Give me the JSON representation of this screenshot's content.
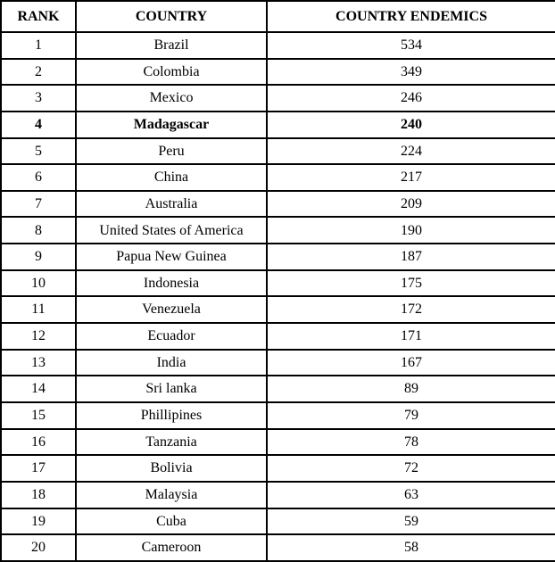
{
  "colors": {
    "border": "#000000",
    "text": "#000000",
    "background": "#ffffff"
  },
  "table": {
    "columns": {
      "rank": "RANK",
      "country": "COUNTRY",
      "endemics": "COUNTRY ENDEMICS"
    },
    "rows": [
      {
        "rank": "1",
        "country": "Brazil",
        "endemics": "534",
        "bold": false
      },
      {
        "rank": "2",
        "country": "Colombia",
        "endemics": "349",
        "bold": false
      },
      {
        "rank": "3",
        "country": "Mexico",
        "endemics": "246",
        "bold": false
      },
      {
        "rank": "4",
        "country": "Madagascar",
        "endemics": "240",
        "bold": true
      },
      {
        "rank": "5",
        "country": "Peru",
        "endemics": "224",
        "bold": false
      },
      {
        "rank": "6",
        "country": "China",
        "endemics": "217",
        "bold": false
      },
      {
        "rank": "7",
        "country": "Australia",
        "endemics": "209",
        "bold": false
      },
      {
        "rank": "8",
        "country": "United States of America",
        "endemics": "190",
        "bold": false
      },
      {
        "rank": "9",
        "country": "Papua New Guinea",
        "endemics": "187",
        "bold": false
      },
      {
        "rank": "10",
        "country": "Indonesia",
        "endemics": "175",
        "bold": false
      },
      {
        "rank": "11",
        "country": "Venezuela",
        "endemics": "172",
        "bold": false
      },
      {
        "rank": "12",
        "country": "Ecuador",
        "endemics": "171",
        "bold": false
      },
      {
        "rank": "13",
        "country": "India",
        "endemics": "167",
        "bold": false
      },
      {
        "rank": "14",
        "country": "Sri lanka",
        "endemics": "89",
        "bold": false
      },
      {
        "rank": "15",
        "country": "Phillipines",
        "endemics": "79",
        "bold": false
      },
      {
        "rank": "16",
        "country": "Tanzania",
        "endemics": "78",
        "bold": false
      },
      {
        "rank": "17",
        "country": "Bolivia",
        "endemics": "72",
        "bold": false
      },
      {
        "rank": "18",
        "country": "Malaysia",
        "endemics": "63",
        "bold": false
      },
      {
        "rank": "19",
        "country": "Cuba",
        "endemics": "59",
        "bold": false
      },
      {
        "rank": "20",
        "country": "Cameroon",
        "endemics": "58",
        "bold": false
      }
    ]
  }
}
